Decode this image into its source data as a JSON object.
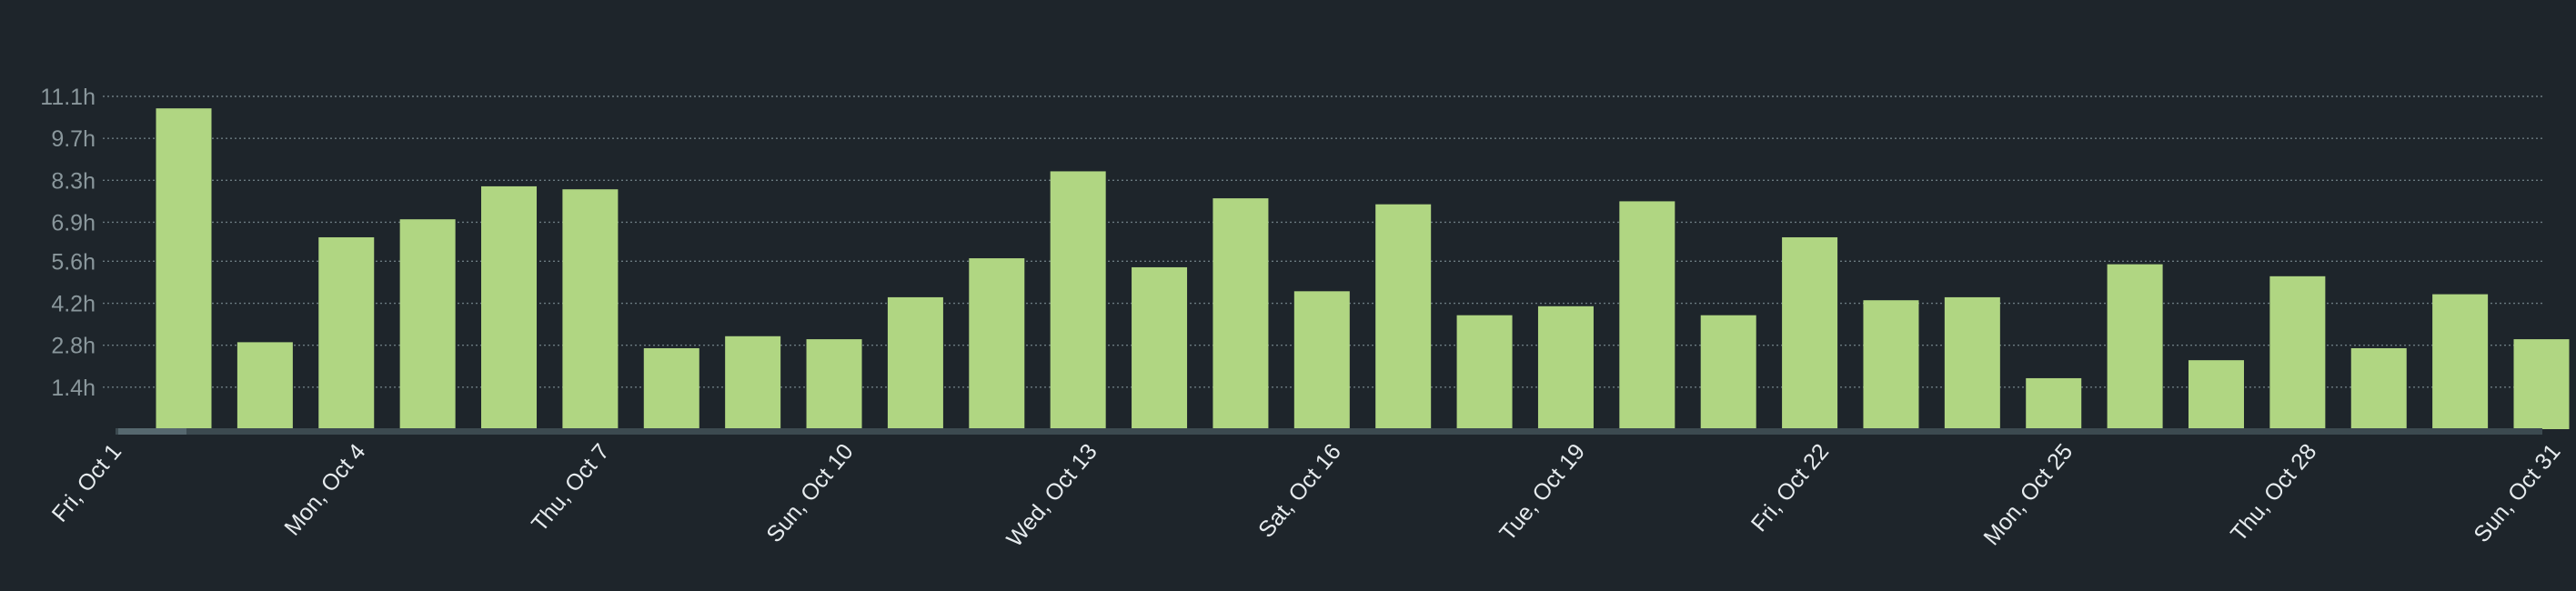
{
  "colors": {
    "background": "#1e252b",
    "bar": "#b0d682",
    "grid": "#6b7a80",
    "baseline": "#3c4a50",
    "baseline_marker": "#56686f",
    "y_tick_text": "#8a979c",
    "x_tick_text": "#e6ebee"
  },
  "chart_data": {
    "type": "bar",
    "title": "",
    "xlabel": "",
    "ylabel": "",
    "grid": "horizontal dotted",
    "legend": "none",
    "ylim": [
      0,
      11.1
    ],
    "y_ticks": [
      1.4,
      2.8,
      4.2,
      5.6,
      6.9,
      8.3,
      9.7,
      11.1
    ],
    "y_tick_labels": [
      "1.4h",
      "2.8h",
      "4.2h",
      "5.6h",
      "6.9h",
      "8.3h",
      "9.7h",
      "11.1h"
    ],
    "categories": [
      "Oct 1",
      "Oct 2",
      "Oct 3",
      "Oct 4",
      "Oct 5",
      "Oct 6",
      "Oct 7",
      "Oct 8",
      "Oct 9",
      "Oct 10",
      "Oct 11",
      "Oct 12",
      "Oct 13",
      "Oct 14",
      "Oct 15",
      "Oct 16",
      "Oct 17",
      "Oct 18",
      "Oct 19",
      "Oct 20",
      "Oct 21",
      "Oct 22",
      "Oct 23",
      "Oct 24",
      "Oct 25",
      "Oct 26",
      "Oct 27",
      "Oct 28",
      "Oct 29",
      "Oct 30",
      "Oct 31"
    ],
    "values": [
      0,
      10.7,
      2.9,
      6.4,
      7.0,
      8.1,
      8.0,
      2.7,
      3.1,
      3.0,
      4.4,
      5.7,
      8.6,
      5.4,
      7.7,
      4.6,
      7.5,
      3.8,
      4.1,
      7.6,
      3.8,
      6.4,
      4.3,
      4.4,
      1.7,
      5.5,
      2.3,
      5.1,
      2.7,
      4.5,
      3.0
    ],
    "x_tick_labels": [
      {
        "index": 0,
        "label": "Fri, Oct 1"
      },
      {
        "index": 3,
        "label": "Mon, Oct 4"
      },
      {
        "index": 6,
        "label": "Thu, Oct 7"
      },
      {
        "index": 9,
        "label": "Sun, Oct 10"
      },
      {
        "index": 12,
        "label": "Wed, Oct 13"
      },
      {
        "index": 15,
        "label": "Sat, Oct 16"
      },
      {
        "index": 18,
        "label": "Tue, Oct 19"
      },
      {
        "index": 21,
        "label": "Fri, Oct 22"
      },
      {
        "index": 24,
        "label": "Mon, Oct 25"
      },
      {
        "index": 27,
        "label": "Thu, Oct 28"
      },
      {
        "index": 30,
        "label": "Sun, Oct 31"
      }
    ]
  }
}
